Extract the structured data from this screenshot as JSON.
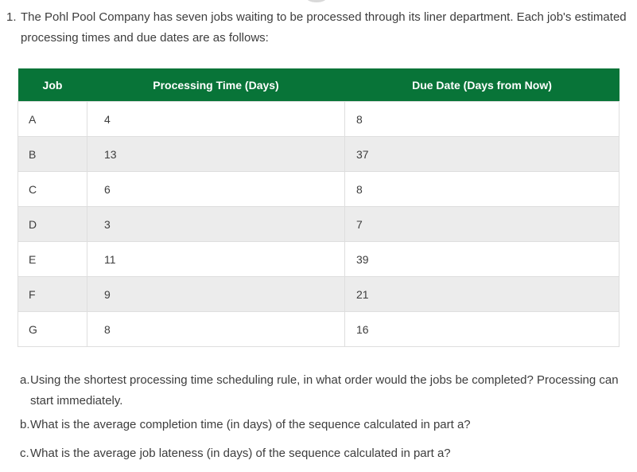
{
  "problem": {
    "number": "1.",
    "text": "The Pohl Pool Company has seven jobs waiting to be processed through its liner department. Each job's estimated processing times and due dates are as follows:"
  },
  "table": {
    "headers": [
      "Job",
      "Processing Time (Days)",
      "Due Date (Days from Now)"
    ],
    "rows": [
      {
        "job": "A",
        "processing_time": "4",
        "due_date": "8"
      },
      {
        "job": "B",
        "processing_time": "13",
        "due_date": "37"
      },
      {
        "job": "C",
        "processing_time": "6",
        "due_date": "8"
      },
      {
        "job": "D",
        "processing_time": "3",
        "due_date": "7"
      },
      {
        "job": "E",
        "processing_time": "11",
        "due_date": "39"
      },
      {
        "job": "F",
        "processing_time": "9",
        "due_date": "21"
      },
      {
        "job": "G",
        "processing_time": "8",
        "due_date": "16"
      }
    ]
  },
  "subquestions": [
    {
      "label": "a.",
      "text": "Using the shortest processing time scheduling rule, in what order would the jobs be completed? Processing can start immediately."
    },
    {
      "label": "b.",
      "text": "What is the average completion time (in days) of the sequence calculated in part a?"
    },
    {
      "label": "c.",
      "text": "What is the average job lateness (in days) of the sequence calculated in part a?"
    }
  ],
  "colors": {
    "header_bg": "#087438",
    "header_text": "#ffffff",
    "row_alt_bg": "#ececec",
    "border": "#dedede",
    "text": "#3d3d3d"
  }
}
